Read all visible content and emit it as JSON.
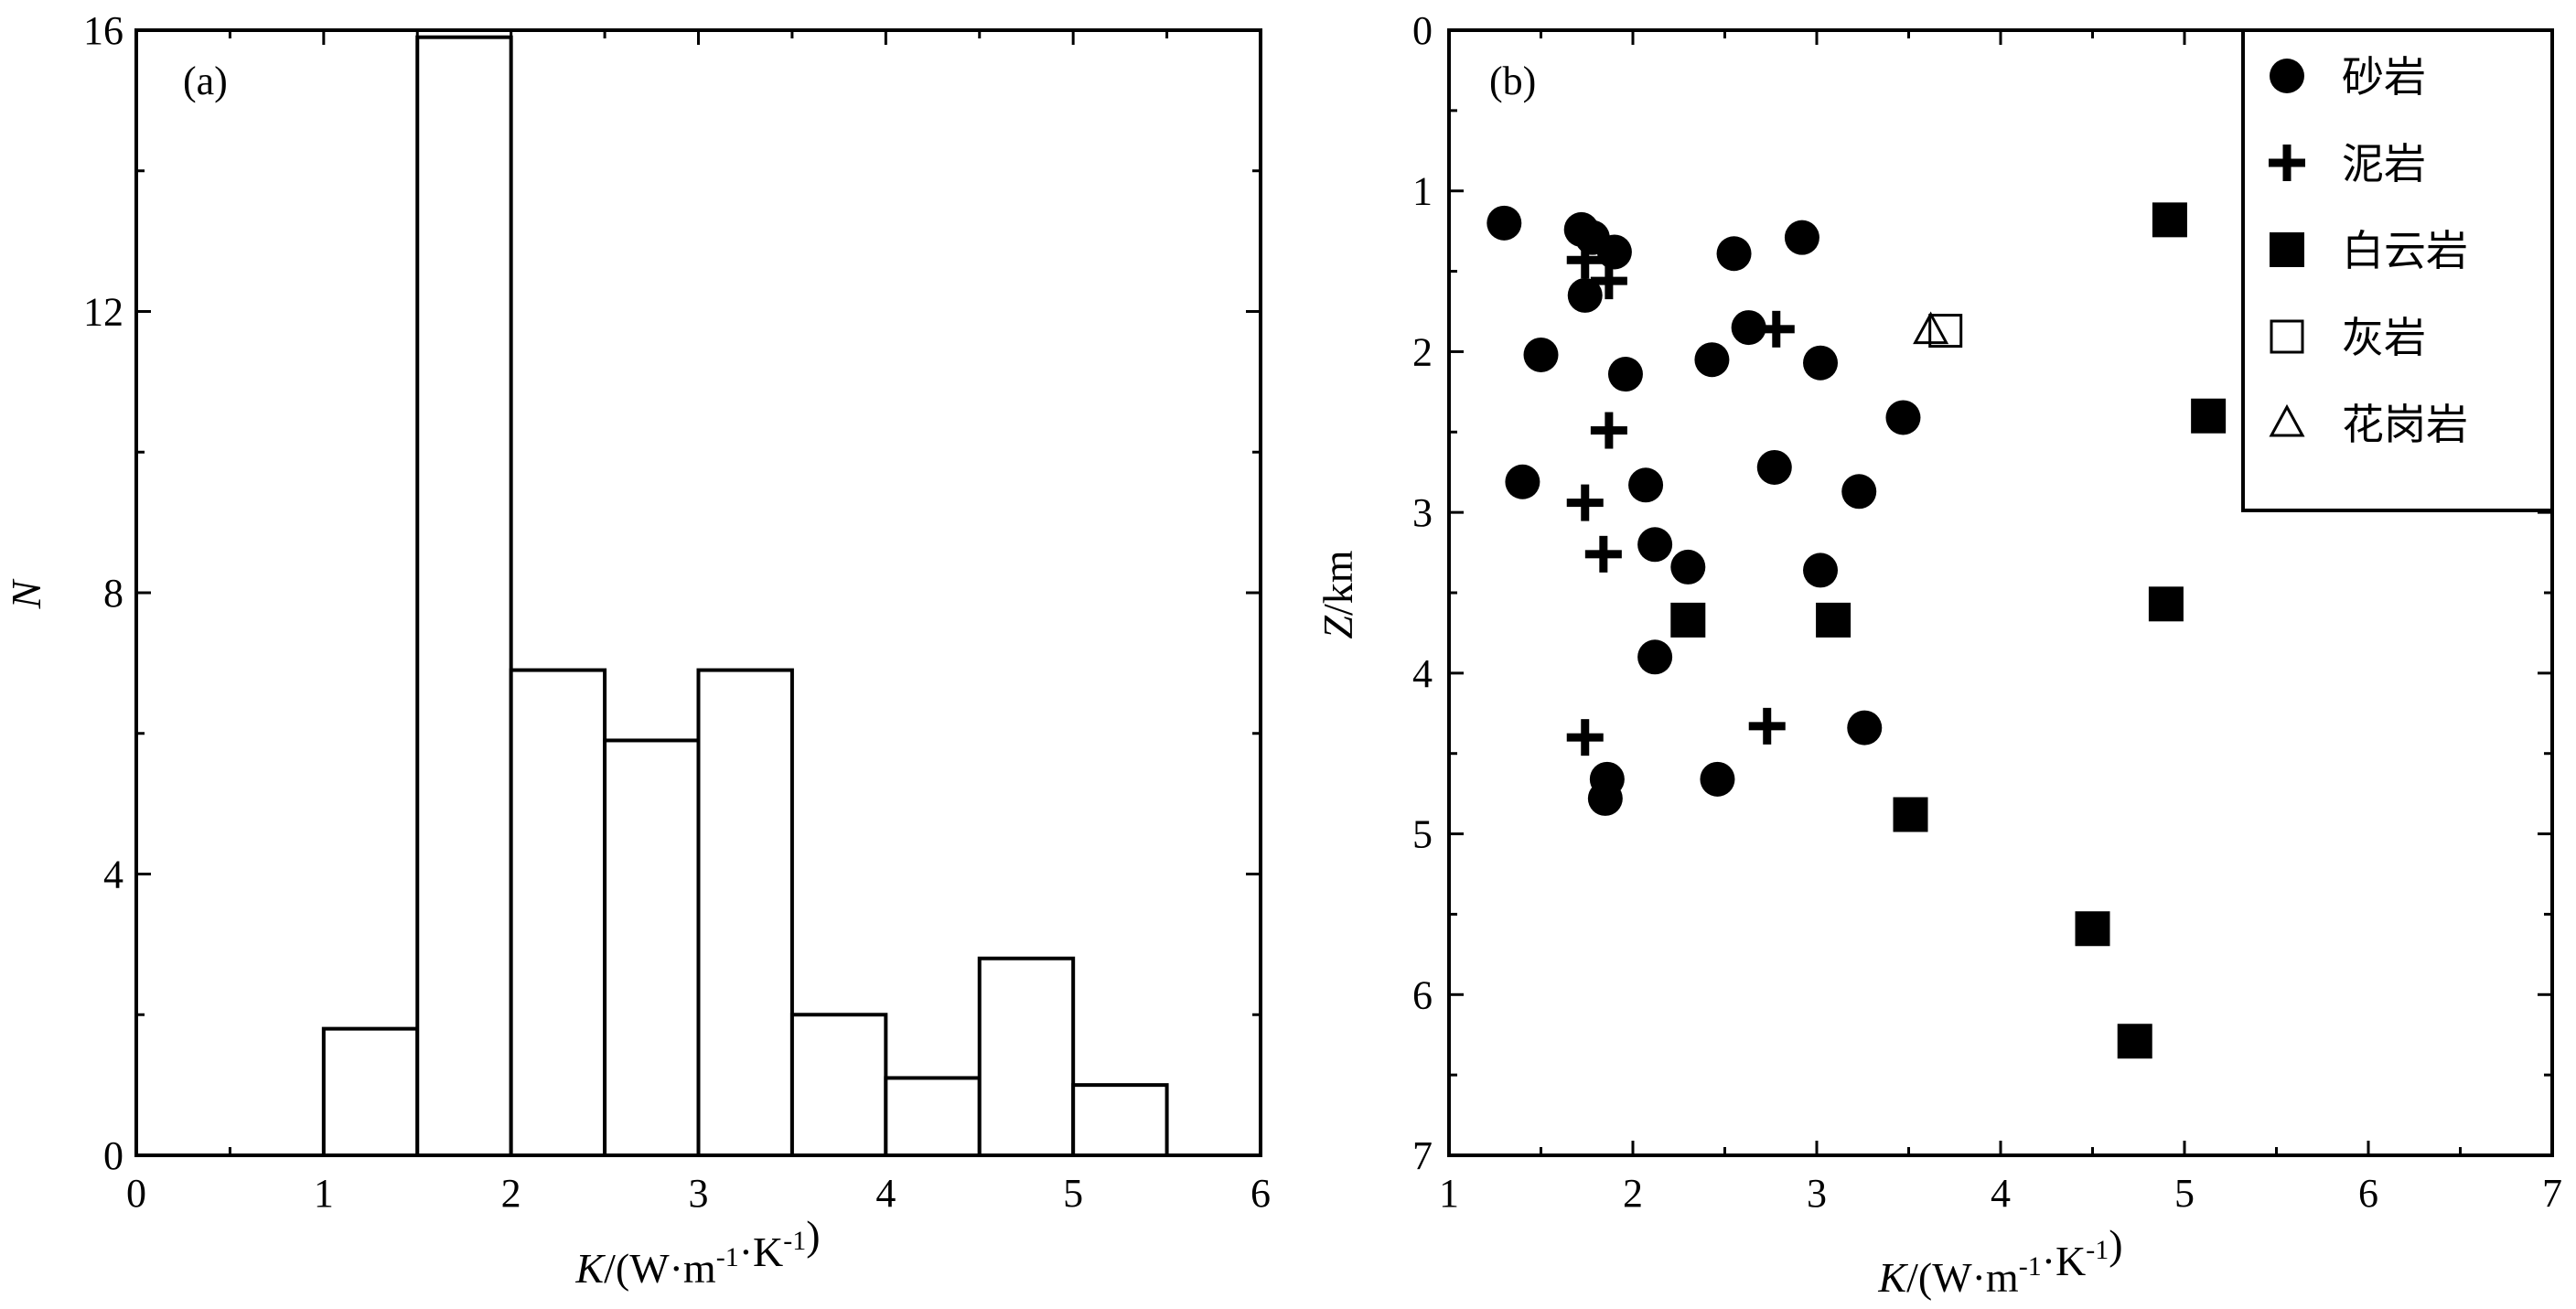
{
  "chart_data": [
    {
      "type": "bar",
      "panel_label": "(a)",
      "bins": [
        {
          "x0": 1.0,
          "x1": 1.5,
          "count": 1.8
        },
        {
          "x0": 1.5,
          "x1": 2.0,
          "count": 15.9
        },
        {
          "x0": 2.0,
          "x1": 2.5,
          "count": 6.9
        },
        {
          "x0": 2.5,
          "x1": 3.0,
          "count": 5.9
        },
        {
          "x0": 3.0,
          "x1": 3.5,
          "count": 6.9
        },
        {
          "x0": 3.5,
          "x1": 4.0,
          "count": 2.0
        },
        {
          "x0": 4.0,
          "x1": 4.5,
          "count": 1.1
        },
        {
          "x0": 4.5,
          "x1": 5.0,
          "count": 2.8
        },
        {
          "x0": 5.0,
          "x1": 5.5,
          "count": 1.0
        }
      ],
      "xlabel_italic": "K",
      "xlabel_rest": "/(W·m-1·K-1)",
      "ylabel": "N",
      "xlim": [
        0,
        6
      ],
      "ylim": [
        0,
        16
      ],
      "xticks": [
        "0",
        "1",
        "2",
        "3",
        "4",
        "5",
        "6"
      ],
      "yticks": [
        "0",
        "4",
        "8",
        "12",
        "16"
      ],
      "grid": false
    },
    {
      "type": "scatter",
      "panel_label": "(b)",
      "xlabel_italic": "K",
      "xlabel_rest": "/(W·m-1·K-1)",
      "ylabel_italic": "Z",
      "ylabel_rest": "/km",
      "xlim": [
        1,
        7
      ],
      "ylim": [
        0,
        7
      ],
      "y_inverted": true,
      "xticks": [
        "1",
        "2",
        "3",
        "4",
        "5",
        "6",
        "7"
      ],
      "yticks": [
        "0",
        "1",
        "2",
        "3",
        "4",
        "5",
        "6",
        "7"
      ],
      "grid": false,
      "legend_position": "top-right",
      "series": [
        {
          "name": "砂岩",
          "marker": "circle",
          "points": [
            [
              1.3,
              1.2
            ],
            [
              1.72,
              1.24
            ],
            [
              1.78,
              1.29
            ],
            [
              1.9,
              1.38
            ],
            [
              1.74,
              1.65
            ],
            [
              2.55,
              1.39
            ],
            [
              2.92,
              1.29
            ],
            [
              2.63,
              1.85
            ],
            [
              1.5,
              2.02
            ],
            [
              1.96,
              2.14
            ],
            [
              2.43,
              2.05
            ],
            [
              3.02,
              2.07
            ],
            [
              3.47,
              2.41
            ],
            [
              1.4,
              2.81
            ],
            [
              2.07,
              2.83
            ],
            [
              2.77,
              2.72
            ],
            [
              3.23,
              2.87
            ],
            [
              2.12,
              3.2
            ],
            [
              2.3,
              3.34
            ],
            [
              3.02,
              3.36
            ],
            [
              2.12,
              3.9
            ],
            [
              3.26,
              4.34
            ],
            [
              1.86,
              4.66
            ],
            [
              2.46,
              4.66
            ],
            [
              1.85,
              4.78
            ]
          ]
        },
        {
          "name": "泥岩",
          "marker": "plus",
          "points": [
            [
              1.74,
              1.43
            ],
            [
              1.87,
              1.56
            ],
            [
              2.78,
              1.86
            ],
            [
              1.87,
              2.49
            ],
            [
              1.74,
              2.94
            ],
            [
              1.84,
              3.26
            ],
            [
              2.73,
              4.33
            ],
            [
              1.74,
              4.4
            ]
          ]
        },
        {
          "name": "白云岩",
          "marker": "square",
          "points": [
            [
              4.92,
              1.18
            ],
            [
              5.13,
              2.4
            ],
            [
              4.9,
              3.57
            ],
            [
              2.3,
              3.67
            ],
            [
              3.09,
              3.67
            ],
            [
              3.51,
              4.88
            ],
            [
              4.5,
              5.59
            ],
            [
              4.73,
              6.29
            ]
          ]
        },
        {
          "name": "灰岩",
          "marker": "open-square",
          "points": [
            [
              3.7,
              1.87
            ]
          ]
        },
        {
          "name": "花岗岩",
          "marker": "open-triangle",
          "points": [
            [
              3.62,
              1.87
            ]
          ]
        }
      ]
    }
  ]
}
